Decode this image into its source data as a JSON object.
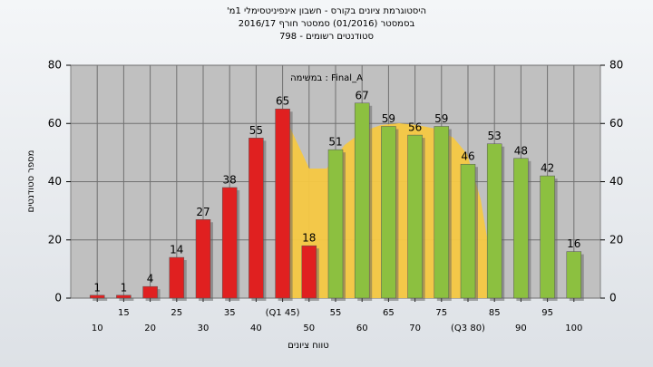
{
  "chart_data": {
    "type": "bar",
    "title": "היסטוגרמת ציונים בקורס - חשבון אינפיניטסימלי 1מ'",
    "subtitle": "בסמסטר  (01/2016)  סמסטר חורף 2016/17",
    "subtitle2": "סטודנטים רשומים - 798",
    "annotation": "במשימה : Final_A",
    "xlabel": "טווח ציונים",
    "ylabel": "מספר סטודנטים",
    "categories": [
      "10",
      "15",
      "20",
      "25",
      "30",
      "35",
      "40",
      "(Q1 45)",
      "50",
      "55",
      "60",
      "65",
      "70",
      "75",
      "(Q3 80)",
      "85",
      "90",
      "95",
      "100"
    ],
    "values": [
      1,
      1,
      4,
      14,
      27,
      38,
      55,
      65,
      18,
      51,
      67,
      59,
      56,
      59,
      46,
      53,
      48,
      42,
      16
    ],
    "colors": [
      "#e02020",
      "#e02020",
      "#e02020",
      "#e02020",
      "#e02020",
      "#e02020",
      "#e02020",
      "#e02020",
      "#e02020",
      "#8cc040",
      "#8cc040",
      "#8cc040",
      "#8cc040",
      "#8cc040",
      "#8cc040",
      "#8cc040",
      "#8cc040",
      "#8cc040",
      "#8cc040"
    ],
    "ylim": [
      0,
      80
    ],
    "yticks": [
      0,
      20,
      40,
      60,
      80
    ],
    "grid": true
  }
}
